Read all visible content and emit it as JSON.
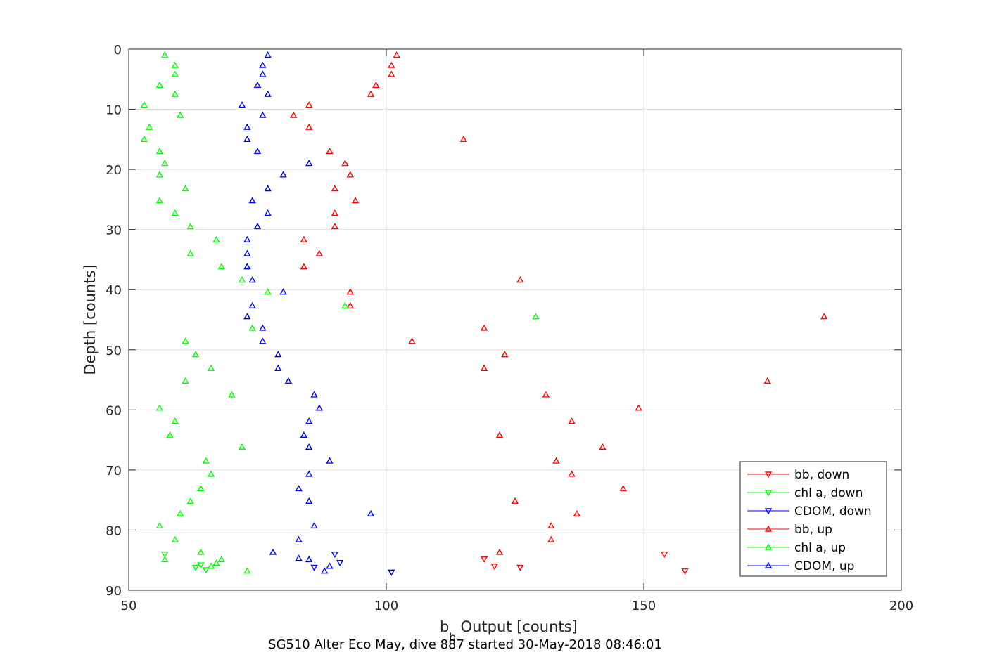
{
  "chart_data": {
    "type": "scatter",
    "title": "",
    "xlabel_main": "b",
    "xlabel_sub": "b",
    "xlabel_rest": " Output [counts]",
    "ylabel": "Depth [counts]",
    "caption": "SG510 Alter Eco May, dive 887 started 30-May-2018 08:46:01",
    "xlim": [
      50,
      200
    ],
    "ylim": [
      0,
      90
    ],
    "y_reversed": true,
    "grid": true,
    "xticks": [
      50,
      100,
      150,
      200
    ],
    "yticks": [
      0,
      10,
      20,
      30,
      40,
      50,
      60,
      70,
      80,
      90
    ],
    "legend_position": "bottom-right",
    "series": [
      {
        "name": "bb, down",
        "color": "#ff0000",
        "marker": "down",
        "points": [
          [
            154,
            84.0
          ],
          [
            119,
            84.8
          ],
          [
            121,
            86.0
          ],
          [
            126,
            86.2
          ],
          [
            158,
            86.8
          ]
        ]
      },
      {
        "name": "chl a, down",
        "color": "#00ff00",
        "marker": "down",
        "points": [
          [
            57,
            84.0
          ],
          [
            64,
            85.8
          ],
          [
            63,
            86.2
          ],
          [
            65,
            86.6
          ]
        ]
      },
      {
        "name": "CDOM, down",
        "color": "#0000ff",
        "marker": "down",
        "points": [
          [
            90,
            84.0
          ],
          [
            91,
            85.4
          ],
          [
            86,
            86.2
          ],
          [
            101,
            87.0
          ]
        ]
      },
      {
        "name": "bb, up",
        "color": "#ff0000",
        "marker": "up",
        "points": [
          [
            102,
            1.0
          ],
          [
            101,
            2.7
          ],
          [
            101,
            4.2
          ],
          [
            98,
            6.0
          ],
          [
            97,
            7.5
          ],
          [
            85,
            9.3
          ],
          [
            82,
            11.0
          ],
          [
            85,
            13.0
          ],
          [
            115,
            15.0
          ],
          [
            89,
            17.0
          ],
          [
            92,
            19.0
          ],
          [
            93,
            20.9
          ],
          [
            90,
            23.2
          ],
          [
            94,
            25.2
          ],
          [
            90,
            27.3
          ],
          [
            90,
            29.5
          ],
          [
            84,
            31.7
          ],
          [
            87,
            34.0
          ],
          [
            84,
            36.2
          ],
          [
            126,
            38.4
          ],
          [
            93,
            40.4
          ],
          [
            93,
            42.7
          ],
          [
            185,
            44.5
          ],
          [
            119,
            46.4
          ],
          [
            105,
            48.6
          ],
          [
            123,
            50.8
          ],
          [
            119,
            53.1
          ],
          [
            174,
            55.2
          ],
          [
            131,
            57.5
          ],
          [
            149,
            59.7
          ],
          [
            136,
            61.9
          ],
          [
            122,
            64.2
          ],
          [
            142,
            66.2
          ],
          [
            133,
            68.5
          ],
          [
            136,
            70.7
          ],
          [
            146,
            73.1
          ],
          [
            125,
            75.2
          ],
          [
            137,
            77.3
          ],
          [
            132,
            79.3
          ],
          [
            132,
            81.6
          ],
          [
            122,
            83.7
          ]
        ]
      },
      {
        "name": "chl a, up",
        "color": "#00ff00",
        "marker": "up",
        "points": [
          [
            57,
            1.0
          ],
          [
            59,
            2.7
          ],
          [
            59,
            4.2
          ],
          [
            56,
            6.0
          ],
          [
            59,
            7.5
          ],
          [
            53,
            9.3
          ],
          [
            60,
            11.0
          ],
          [
            54,
            13.0
          ],
          [
            53,
            15.0
          ],
          [
            56,
            17.0
          ],
          [
            57,
            19.0
          ],
          [
            56,
            20.9
          ],
          [
            61,
            23.2
          ],
          [
            56,
            25.2
          ],
          [
            59,
            27.3
          ],
          [
            62,
            29.5
          ],
          [
            67,
            31.7
          ],
          [
            62,
            34.0
          ],
          [
            68,
            36.2
          ],
          [
            72,
            38.4
          ],
          [
            77,
            40.4
          ],
          [
            92,
            42.7
          ],
          [
            129,
            44.5
          ],
          [
            74,
            46.4
          ],
          [
            61,
            48.6
          ],
          [
            63,
            50.8
          ],
          [
            66,
            53.1
          ],
          [
            61,
            55.2
          ],
          [
            70,
            57.5
          ],
          [
            56,
            59.7
          ],
          [
            59,
            61.9
          ],
          [
            58,
            64.2
          ],
          [
            72,
            66.2
          ],
          [
            65,
            68.5
          ],
          [
            66,
            70.7
          ],
          [
            64,
            73.1
          ],
          [
            62,
            75.2
          ],
          [
            60,
            77.3
          ],
          [
            56,
            79.3
          ],
          [
            59,
            81.6
          ],
          [
            64,
            83.7
          ],
          [
            57,
            84.9
          ],
          [
            68,
            84.9
          ],
          [
            67,
            85.5
          ],
          [
            66,
            86.0
          ],
          [
            73,
            86.8
          ]
        ]
      },
      {
        "name": "CDOM, up",
        "color": "#0000ff",
        "marker": "up",
        "points": [
          [
            77,
            1.0
          ],
          [
            76,
            2.7
          ],
          [
            76,
            4.2
          ],
          [
            75,
            6.0
          ],
          [
            77,
            7.5
          ],
          [
            72,
            9.3
          ],
          [
            76,
            11.0
          ],
          [
            73,
            13.0
          ],
          [
            73,
            15.0
          ],
          [
            75,
            17.0
          ],
          [
            85,
            19.0
          ],
          [
            80,
            20.9
          ],
          [
            77,
            23.2
          ],
          [
            74,
            25.2
          ],
          [
            77,
            27.3
          ],
          [
            75,
            29.5
          ],
          [
            73,
            31.7
          ],
          [
            73,
            34.0
          ],
          [
            73,
            36.2
          ],
          [
            74,
            38.4
          ],
          [
            80,
            40.4
          ],
          [
            74,
            42.7
          ],
          [
            73,
            44.5
          ],
          [
            76,
            46.4
          ],
          [
            76,
            48.6
          ],
          [
            79,
            50.8
          ],
          [
            79,
            53.1
          ],
          [
            81,
            55.2
          ],
          [
            86,
            57.5
          ],
          [
            87,
            59.7
          ],
          [
            85,
            61.9
          ],
          [
            84,
            64.2
          ],
          [
            85,
            66.2
          ],
          [
            89,
            68.5
          ],
          [
            85,
            70.7
          ],
          [
            83,
            73.1
          ],
          [
            85,
            75.2
          ],
          [
            97,
            77.3
          ],
          [
            86,
            79.3
          ],
          [
            83,
            81.6
          ],
          [
            78,
            83.7
          ],
          [
            83,
            84.7
          ],
          [
            85,
            84.9
          ],
          [
            89,
            86.0
          ],
          [
            88,
            86.8
          ]
        ]
      }
    ]
  }
}
